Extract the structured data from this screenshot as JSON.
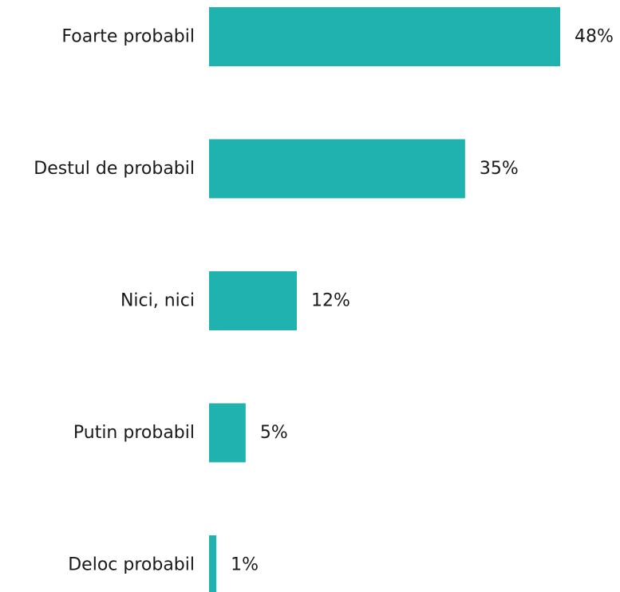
{
  "chart_data": {
    "type": "bar",
    "orientation": "horizontal",
    "categories": [
      "Foarte probabil",
      "Destul de probabil",
      "Nici, nici",
      "Putin probabil",
      "Deloc probabil"
    ],
    "values": [
      48,
      35,
      12,
      5,
      1
    ],
    "value_labels": [
      "48%",
      "35%",
      "12%",
      "5%",
      "1%"
    ],
    "title": "",
    "xlabel": "",
    "ylabel": "",
    "unit": "%",
    "xlim": [
      0,
      48
    ],
    "grid": false,
    "legend": "none",
    "bar_color": "#20B2AE"
  }
}
